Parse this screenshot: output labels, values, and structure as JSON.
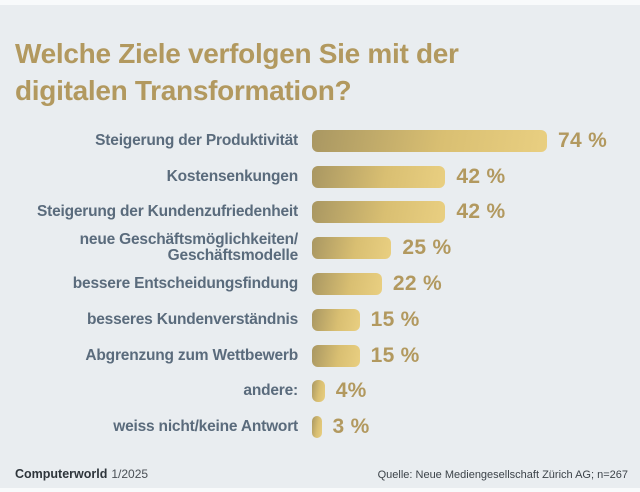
{
  "title": "Welche Ziele verfolgen Sie mit der\ndigitalen Transformation?",
  "colors": {
    "background": "#e9edf0",
    "title_gold": "#b2995f",
    "label_slate": "#5a6b7c",
    "value_gold": "#b2995f",
    "bar_gradient_start": "#a99762",
    "bar_gradient_mid": "#d9bf72",
    "bar_gradient_end": "#e9cf81",
    "footer_text": "#3c4349"
  },
  "chart_data": {
    "type": "bar",
    "orientation": "horizontal",
    "title": "Welche Ziele verfolgen Sie mit der digitalen Transformation?",
    "unit": "%",
    "xlim": [
      0,
      74
    ],
    "grid": false,
    "legend": false,
    "categories": [
      "Steigerung der Produktivität",
      "Kostensenkungen",
      "Steigerung der Kundenzufriedenheit",
      "neue Geschäftsmöglichkeiten/\nGeschäftsmodelle",
      "bessere Entscheidungsfindung",
      "besseres Kundenverständnis",
      "Abgrenzung zum Wettbewerb",
      "andere:",
      "weiss nicht/keine Antwort"
    ],
    "values": [
      74,
      42,
      42,
      25,
      22,
      15,
      15,
      4,
      3
    ],
    "value_labels": [
      "74 %",
      "42 %",
      "42 %",
      "25 %",
      "22 %",
      "15 %",
      "15 %",
      "4%",
      "3 %"
    ]
  },
  "footer": {
    "brand": "Computerworld",
    "issue": "1/2025",
    "source": "Quelle: Neue Mediengesellschaft Zürich AG; n=267"
  }
}
